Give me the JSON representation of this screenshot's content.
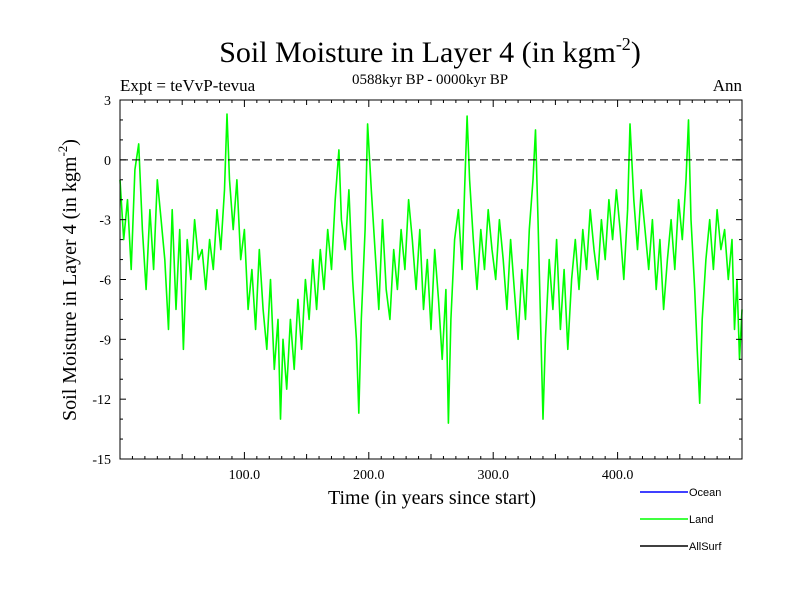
{
  "chart_data": {
    "type": "line",
    "title": "Soil Moisture in Layer 4 (in kgm",
    "title_sup": "-2",
    "title_close": ")",
    "header_left": "Expt = teVvP-tevua",
    "header_center": "0588kyr BP - 0000kyr BP",
    "header_right": "Ann",
    "xlabel": "Time (in years since start)",
    "ylabel": "Soil Moisture in Layer 4 (in kgm",
    "ylabel_sup": "-2",
    "ylabel_close": ")",
    "xlim": [
      0,
      500
    ],
    "ylim": [
      -15,
      3
    ],
    "xticks": [
      100,
      200,
      300,
      400
    ],
    "xtick_labels": [
      "100.0",
      "200.0",
      "300.0",
      "400.0"
    ],
    "yticks": [
      3,
      0,
      -3,
      -6,
      -9,
      -12,
      -15
    ],
    "ytick_labels": [
      "3",
      "0",
      "-3",
      "-6",
      "-9",
      "-12",
      "-15"
    ],
    "reference_line": 0,
    "legend": [
      {
        "name": "Ocean",
        "color": "#0000ff"
      },
      {
        "name": "Land",
        "color": "#00ff00"
      },
      {
        "name": "AllSurf",
        "color": "#000000"
      }
    ],
    "series": [
      {
        "name": "Land",
        "color": "#00ff00",
        "keypoints": [
          [
            0,
            -1.0
          ],
          [
            3,
            -4.0
          ],
          [
            6,
            -2.0
          ],
          [
            9,
            -5.5
          ],
          [
            12,
            -0.5
          ],
          [
            15,
            0.8
          ],
          [
            18,
            -3.5
          ],
          [
            21,
            -6.5
          ],
          [
            24,
            -2.5
          ],
          [
            27,
            -5.5
          ],
          [
            30,
            -1.0
          ],
          [
            33,
            -3.0
          ],
          [
            36,
            -5.0
          ],
          [
            39,
            -8.5
          ],
          [
            42,
            -2.5
          ],
          [
            45,
            -7.5
          ],
          [
            48,
            -3.5
          ],
          [
            51,
            -9.5
          ],
          [
            54,
            -4.0
          ],
          [
            57,
            -6.0
          ],
          [
            60,
            -3.0
          ],
          [
            63,
            -5.0
          ],
          [
            66,
            -4.5
          ],
          [
            69,
            -6.5
          ],
          [
            72,
            -4.0
          ],
          [
            75,
            -5.5
          ],
          [
            78,
            -2.5
          ],
          [
            81,
            -4.5
          ],
          [
            84,
            -1.5
          ],
          [
            86,
            2.3
          ],
          [
            88,
            -1.0
          ],
          [
            91,
            -3.5
          ],
          [
            94,
            -1.0
          ],
          [
            97,
            -5.0
          ],
          [
            100,
            -3.5
          ],
          [
            103,
            -7.5
          ],
          [
            106,
            -5.5
          ],
          [
            109,
            -8.5
          ],
          [
            112,
            -4.5
          ],
          [
            115,
            -7.5
          ],
          [
            118,
            -9.5
          ],
          [
            121,
            -6.0
          ],
          [
            124,
            -10.5
          ],
          [
            127,
            -8.0
          ],
          [
            129,
            -13.0
          ],
          [
            131,
            -9.0
          ],
          [
            134,
            -11.5
          ],
          [
            137,
            -8.0
          ],
          [
            140,
            -10.5
          ],
          [
            143,
            -7.0
          ],
          [
            146,
            -9.5
          ],
          [
            149,
            -6.0
          ],
          [
            152,
            -8.0
          ],
          [
            155,
            -5.0
          ],
          [
            158,
            -7.5
          ],
          [
            161,
            -4.5
          ],
          [
            164,
            -6.5
          ],
          [
            167,
            -3.5
          ],
          [
            170,
            -5.5
          ],
          [
            173,
            -2.0
          ],
          [
            176,
            0.5
          ],
          [
            178,
            -3.0
          ],
          [
            181,
            -4.5
          ],
          [
            184,
            -1.5
          ],
          [
            187,
            -6.0
          ],
          [
            190,
            -9.0
          ],
          [
            192,
            -12.7
          ],
          [
            194,
            -8.0
          ],
          [
            197,
            -3.5
          ],
          [
            199,
            1.8
          ],
          [
            202,
            -1.5
          ],
          [
            205,
            -4.5
          ],
          [
            208,
            -7.5
          ],
          [
            211,
            -3.0
          ],
          [
            214,
            -6.5
          ],
          [
            217,
            -8.0
          ],
          [
            220,
            -4.5
          ],
          [
            223,
            -6.5
          ],
          [
            226,
            -3.5
          ],
          [
            229,
            -5.5
          ],
          [
            232,
            -2.0
          ],
          [
            235,
            -4.0
          ],
          [
            238,
            -6.5
          ],
          [
            241,
            -3.5
          ],
          [
            244,
            -7.5
          ],
          [
            247,
            -5.0
          ],
          [
            250,
            -8.5
          ],
          [
            253,
            -4.5
          ],
          [
            256,
            -7.0
          ],
          [
            259,
            -10.0
          ],
          [
            262,
            -6.5
          ],
          [
            264,
            -13.2
          ],
          [
            266,
            -8.0
          ],
          [
            269,
            -4.0
          ],
          [
            272,
            -2.5
          ],
          [
            275,
            -5.5
          ],
          [
            277,
            -1.5
          ],
          [
            279,
            2.2
          ],
          [
            281,
            -1.0
          ],
          [
            284,
            -4.0
          ],
          [
            287,
            -6.5
          ],
          [
            290,
            -3.5
          ],
          [
            293,
            -5.5
          ],
          [
            296,
            -2.5
          ],
          [
            299,
            -4.5
          ],
          [
            302,
            -6.0
          ],
          [
            305,
            -3.0
          ],
          [
            308,
            -5.0
          ],
          [
            311,
            -7.5
          ],
          [
            314,
            -4.0
          ],
          [
            317,
            -6.5
          ],
          [
            320,
            -9.0
          ],
          [
            323,
            -5.5
          ],
          [
            326,
            -8.0
          ],
          [
            329,
            -3.5
          ],
          [
            332,
            -1.0
          ],
          [
            334,
            1.5
          ],
          [
            336,
            -3.0
          ],
          [
            338,
            -8.0
          ],
          [
            340,
            -13.0
          ],
          [
            342,
            -9.0
          ],
          [
            345,
            -5.0
          ],
          [
            348,
            -7.5
          ],
          [
            351,
            -4.0
          ],
          [
            354,
            -8.5
          ],
          [
            357,
            -5.5
          ],
          [
            360,
            -9.5
          ],
          [
            363,
            -6.0
          ],
          [
            366,
            -4.0
          ],
          [
            369,
            -6.5
          ],
          [
            372,
            -3.5
          ],
          [
            375,
            -5.5
          ],
          [
            378,
            -2.5
          ],
          [
            381,
            -4.5
          ],
          [
            384,
            -6.0
          ],
          [
            387,
            -3.0
          ],
          [
            390,
            -5.0
          ],
          [
            393,
            -2.0
          ],
          [
            396,
            -4.0
          ],
          [
            399,
            -1.5
          ],
          [
            402,
            -3.5
          ],
          [
            405,
            -6.0
          ],
          [
            408,
            -2.5
          ],
          [
            410,
            1.8
          ],
          [
            413,
            -2.0
          ],
          [
            416,
            -4.5
          ],
          [
            419,
            -1.5
          ],
          [
            422,
            -3.5
          ],
          [
            425,
            -5.5
          ],
          [
            428,
            -3.0
          ],
          [
            431,
            -6.5
          ],
          [
            434,
            -4.0
          ],
          [
            437,
            -7.5
          ],
          [
            440,
            -5.0
          ],
          [
            443,
            -3.0
          ],
          [
            446,
            -5.5
          ],
          [
            449,
            -2.0
          ],
          [
            452,
            -4.0
          ],
          [
            455,
            -1.0
          ],
          [
            457,
            2.0
          ],
          [
            459,
            -3.0
          ],
          [
            462,
            -6.5
          ],
          [
            464,
            -9.5
          ],
          [
            466,
            -12.2
          ],
          [
            468,
            -8.0
          ],
          [
            471,
            -5.0
          ],
          [
            474,
            -3.0
          ],
          [
            477,
            -5.5
          ],
          [
            480,
            -2.5
          ],
          [
            483,
            -4.5
          ],
          [
            486,
            -3.5
          ],
          [
            489,
            -6.0
          ],
          [
            492,
            -4.0
          ],
          [
            494,
            -8.5
          ],
          [
            496,
            -6.0
          ],
          [
            498,
            -10.0
          ],
          [
            500,
            -7.5
          ]
        ]
      }
    ]
  }
}
